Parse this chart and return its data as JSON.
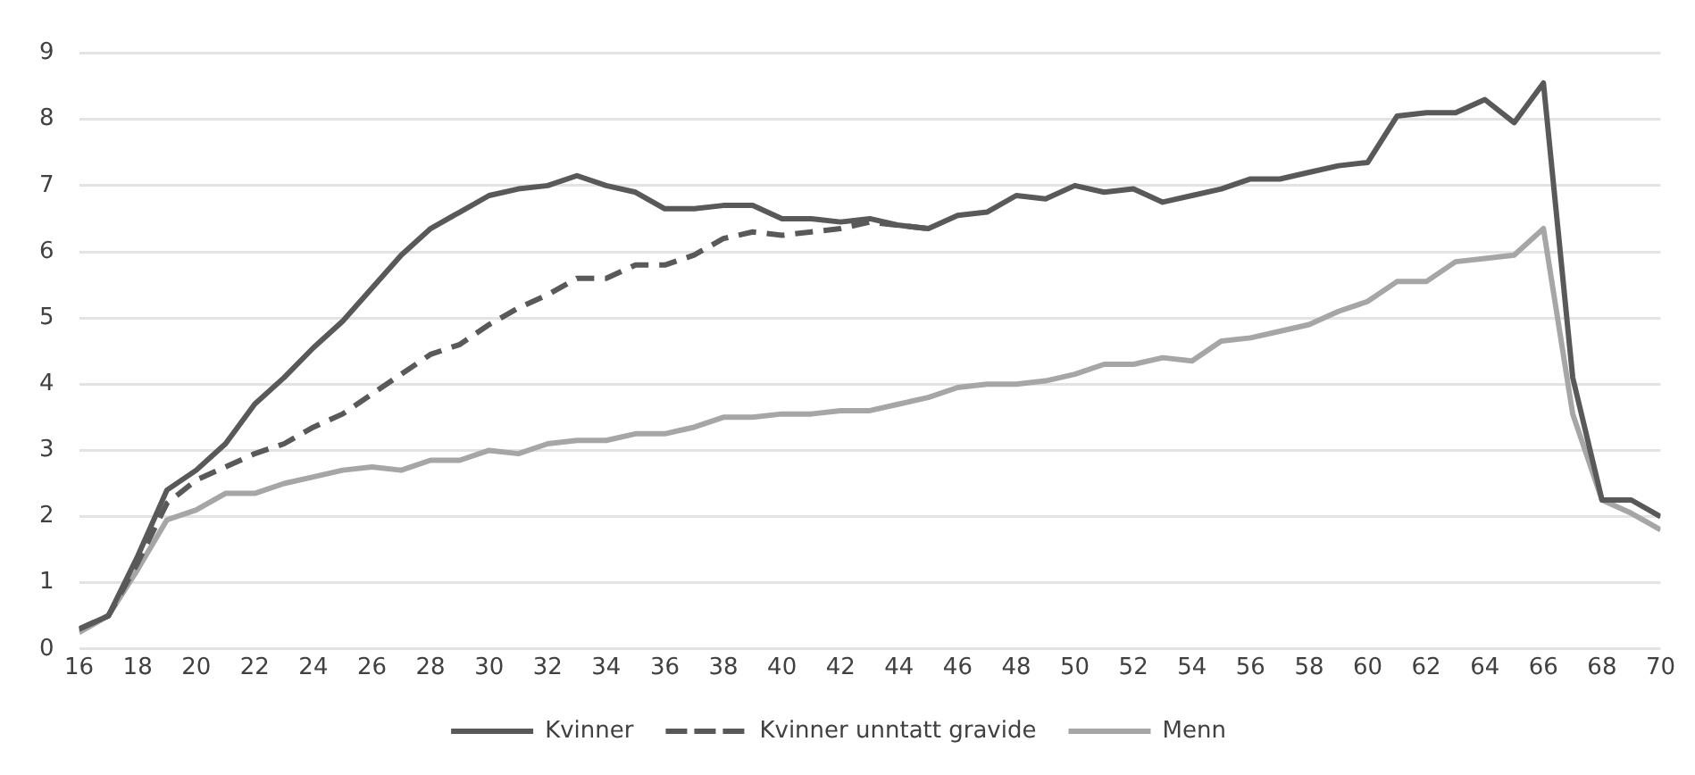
{
  "chart_data": {
    "type": "line",
    "x": [
      16,
      17,
      18,
      19,
      20,
      21,
      22,
      23,
      24,
      25,
      26,
      27,
      28,
      29,
      30,
      31,
      32,
      33,
      34,
      35,
      36,
      37,
      38,
      39,
      40,
      41,
      42,
      43,
      44,
      45,
      46,
      47,
      48,
      49,
      50,
      51,
      52,
      53,
      54,
      55,
      56,
      57,
      58,
      59,
      60,
      61,
      62,
      63,
      64,
      65,
      66,
      67,
      68,
      69,
      70
    ],
    "xlim": [
      16,
      70
    ],
    "xticks": [
      16,
      18,
      20,
      22,
      24,
      26,
      28,
      30,
      32,
      34,
      36,
      38,
      40,
      42,
      44,
      46,
      48,
      50,
      52,
      54,
      56,
      58,
      60,
      62,
      64,
      66,
      68,
      70
    ],
    "ylim": [
      0,
      9
    ],
    "yticks": [
      0,
      1,
      2,
      3,
      4,
      5,
      6,
      7,
      8,
      9
    ],
    "grid": "y",
    "legend": "bottom",
    "marker": "none",
    "series": [
      {
        "name": "Kvinner",
        "color": "#595959",
        "line_style": "solid",
        "values": [
          0.3,
          0.5,
          1.4,
          2.4,
          2.7,
          3.1,
          3.7,
          4.1,
          4.55,
          4.95,
          5.45,
          5.95,
          6.35,
          6.6,
          6.85,
          6.95,
          7.0,
          7.15,
          7.0,
          6.9,
          6.65,
          6.65,
          6.7,
          6.7,
          6.5,
          6.5,
          6.45,
          6.5,
          6.4,
          6.35,
          6.55,
          6.6,
          6.85,
          6.8,
          7.0,
          6.9,
          6.95,
          6.75,
          6.85,
          6.95,
          7.1,
          7.1,
          7.2,
          7.3,
          7.35,
          8.05,
          8.1,
          8.1,
          8.3,
          7.95,
          8.55,
          4.1,
          2.25,
          2.25,
          2.0
        ]
      },
      {
        "name": "Kvinner unntatt gravide",
        "color": "#595959",
        "line_style": "dashed",
        "values": [
          0.3,
          0.5,
          1.3,
          2.2,
          2.55,
          2.75,
          2.95,
          3.1,
          3.35,
          3.55,
          3.85,
          4.15,
          4.45,
          4.6,
          4.9,
          5.15,
          5.35,
          5.6,
          5.6,
          5.8,
          5.8,
          5.95,
          6.2,
          6.3,
          6.25,
          6.3,
          6.35,
          6.45,
          6.4,
          6.35,
          null,
          null,
          null,
          null,
          null,
          null,
          null,
          null,
          null,
          null,
          null,
          null,
          null,
          null,
          null,
          null,
          null,
          null,
          null,
          null,
          null,
          null,
          null,
          null,
          null
        ]
      },
      {
        "name": "Menn",
        "color": "#a6a6a6",
        "line_style": "solid",
        "values": [
          0.25,
          0.5,
          1.2,
          1.95,
          2.1,
          2.35,
          2.35,
          2.5,
          2.6,
          2.7,
          2.75,
          2.7,
          2.85,
          2.85,
          3.0,
          2.95,
          3.1,
          3.15,
          3.15,
          3.25,
          3.25,
          3.35,
          3.5,
          3.5,
          3.55,
          3.55,
          3.6,
          3.6,
          3.7,
          3.8,
          3.95,
          4.0,
          4.0,
          4.05,
          4.15,
          4.3,
          4.3,
          4.4,
          4.35,
          4.65,
          4.7,
          4.8,
          4.9,
          5.1,
          5.25,
          5.55,
          5.55,
          5.85,
          5.9,
          5.95,
          6.35,
          3.55,
          2.25,
          2.05,
          1.8
        ]
      }
    ]
  }
}
